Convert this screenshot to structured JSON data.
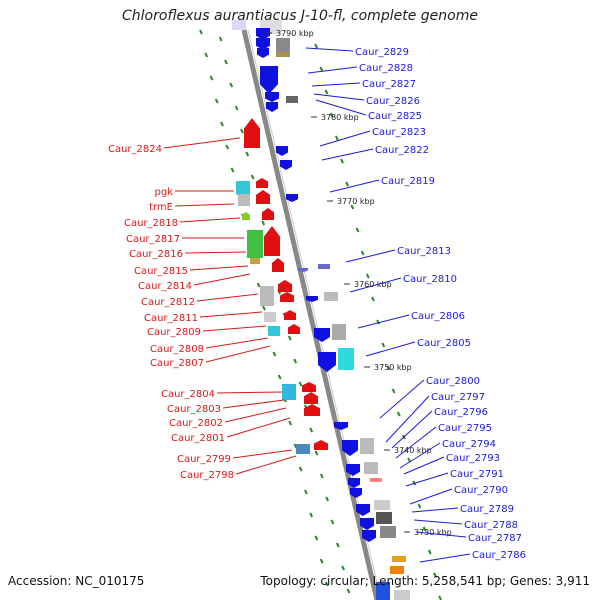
{
  "title": "Chloroflexus aurantiacus J-10-fl, complete genome",
  "footer": {
    "accession": "Accession: NC_010175",
    "summary": "Topology: circular; Length: 5,258,541 bp; Genes: 3,911"
  },
  "colors": {
    "forward": "#e01010",
    "reverse": "#1010e0",
    "backbone": "#888888",
    "tick": "#2a8a2a",
    "label_red": "#d61a1a",
    "label_blue": "#1a1ad6"
  },
  "kbp_markers": [
    "3790 kbp",
    "3780 kbp",
    "3770 kbp",
    "3760 kbp",
    "3750 kbp",
    "3740 kbp",
    "3730 kbp"
  ],
  "right_labels": [
    "Caur_2829",
    "Caur_2828",
    "Caur_2827",
    "Caur_2826",
    "Caur_2825",
    "Caur_2823",
    "Caur_2822",
    "Caur_2819",
    "Caur_2813",
    "Caur_2810",
    "Caur_2806",
    "Caur_2805",
    "Caur_2800",
    "Caur_2797",
    "Caur_2796",
    "Caur_2795",
    "Caur_2794",
    "Caur_2793",
    "Caur_2791",
    "Caur_2790",
    "Caur_2789",
    "Caur_2788",
    "Caur_2787",
    "Caur_2786"
  ],
  "left_labels": [
    "Caur_2824",
    "pgk",
    "trmE",
    "Caur_2818",
    "Caur_2817",
    "Caur_2816",
    "Caur_2815",
    "Caur_2814",
    "Caur_2812",
    "Caur_2811",
    "Caur_2809",
    "Caur_2808",
    "Caur_2807",
    "Caur_2804",
    "Caur_2803",
    "Caur_2802",
    "Caur_2801",
    "Caur_2799",
    "Caur_2798"
  ]
}
